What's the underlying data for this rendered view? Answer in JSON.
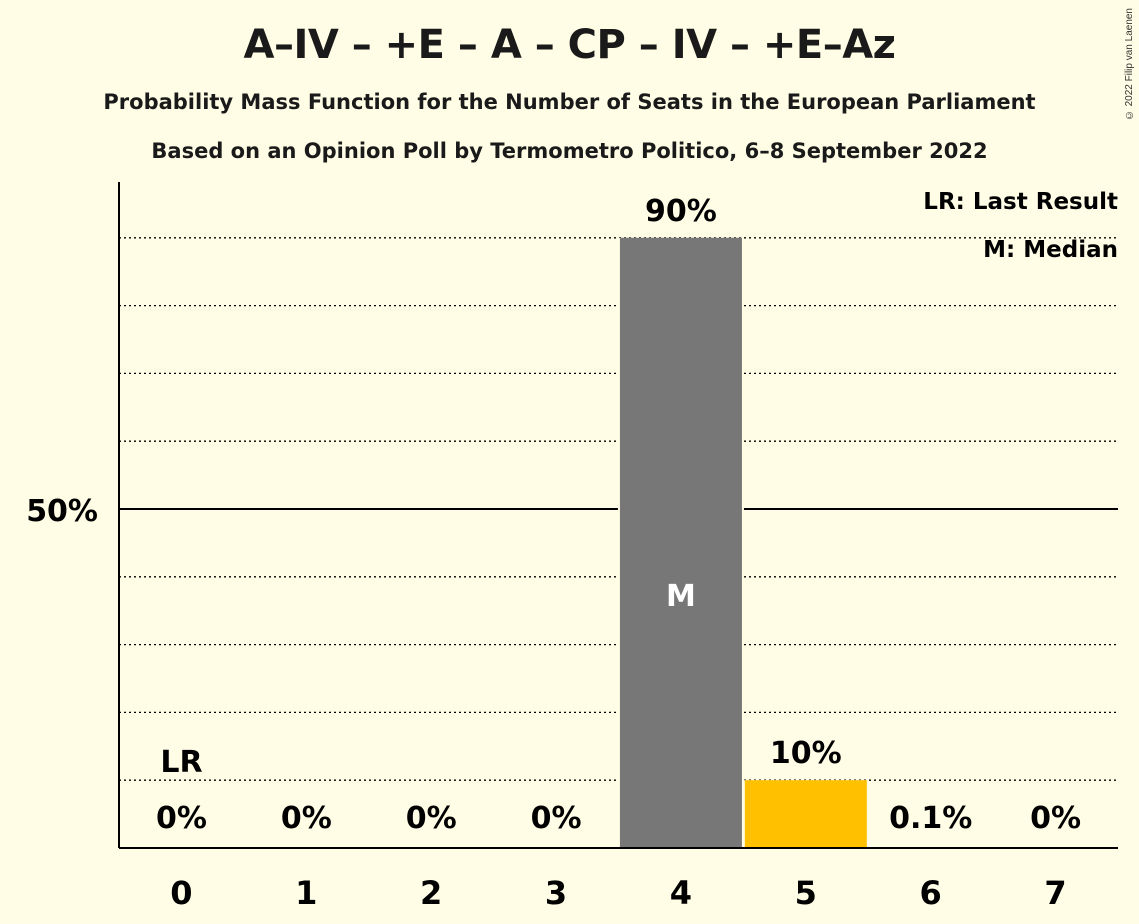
{
  "header": {
    "title": "A–IV – +E – A – CP – IV – +E–Az",
    "subtitle1": "Probability Mass Function for the Number of Seats in the European Parliament",
    "subtitle2": "Based on an Opinion Poll by Termometro Politico, 6–8 September 2022",
    "copyright": "© 2022 Filip van Laenen"
  },
  "legend": {
    "last_result": "LR: Last Result",
    "median": "M: Median"
  },
  "chart_data": {
    "type": "bar",
    "categories": [
      "0",
      "1",
      "2",
      "3",
      "4",
      "5",
      "6",
      "7"
    ],
    "values": [
      0,
      0,
      0,
      0,
      90,
      10,
      0.1,
      0
    ],
    "value_labels": [
      "0%",
      "0%",
      "0%",
      "0%",
      "90%",
      "10%",
      "0.1%",
      "0%"
    ],
    "ylim": [
      0,
      100
    ],
    "ytick_labels": [
      {
        "value": 50,
        "label": "50%"
      }
    ],
    "grid": true,
    "legend_placement": "top-right",
    "last_result_index": 0,
    "last_result_label": "LR",
    "median_index": 4,
    "median_label": "M",
    "colors": {
      "median_bar": "#777777",
      "other_bar": "#FFC000",
      "background": "#FFFDE5"
    }
  }
}
